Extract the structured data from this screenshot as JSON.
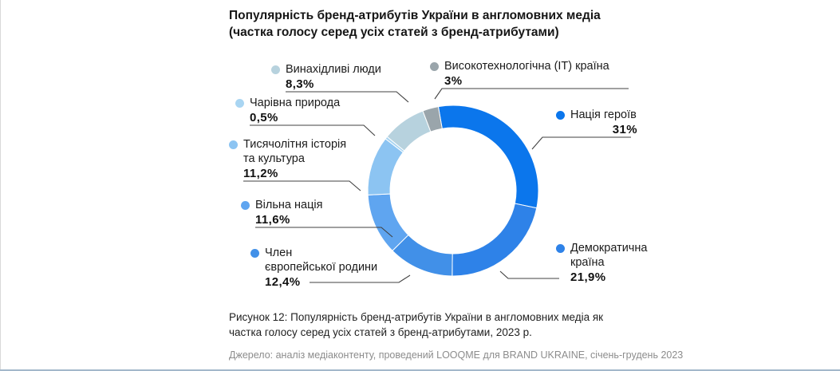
{
  "title": {
    "lines": [
      "Популярність бренд-атрибутів України в англомовних медіа",
      "(частка голосу серед усіх статей з бренд-атрибутами)"
    ]
  },
  "chart_data": {
    "type": "pie",
    "subtype": "donut",
    "title": "Популярність бренд-атрибутів України в англомовних медіа (частка голосу серед усіх статей з бренд-атрибутами)",
    "start_angle_deg": -10,
    "direction": "clockwise",
    "legend_position": "around",
    "slices": [
      {
        "label": "Нація героїв",
        "label_lines": [
          "Нація героїв"
        ],
        "value": 31,
        "display": "31%",
        "color": "#0b76ec"
      },
      {
        "label": "Демократична країна",
        "label_lines": [
          "Демократична",
          "країна"
        ],
        "value": 21.9,
        "display": "21,9%",
        "color": "#2e82e8"
      },
      {
        "label": "Член європейської родини",
        "label_lines": [
          "Член",
          "європейської родини"
        ],
        "value": 12.4,
        "display": "12,4%",
        "color": "#4190e8"
      },
      {
        "label": "Вільна нація",
        "label_lines": [
          "Вільна нація"
        ],
        "value": 11.6,
        "display": "11,6%",
        "color": "#5fa5f0"
      },
      {
        "label": "Тисячолітня історія та культура",
        "label_lines": [
          "Тисячолітня історія",
          "та культура"
        ],
        "value": 11.2,
        "display": "11,2%",
        "color": "#8cc4f2"
      },
      {
        "label": "Чарівна природа",
        "label_lines": [
          "Чарівна природа"
        ],
        "value": 0.5,
        "display": "0,5%",
        "color": "#a9d5f2"
      },
      {
        "label": "Винахідливі люди",
        "label_lines": [
          "Винахідливі люди"
        ],
        "value": 8.3,
        "display": "8,3%",
        "color": "#b7d2de"
      },
      {
        "label": "Високотехнологічна (ІТ) країна",
        "label_lines": [
          "Високотехнологічна (ІТ) країна"
        ],
        "value": 3,
        "display": "3%",
        "color": "#9aa5ab"
      }
    ]
  },
  "caption": "Рисунок 12: Популярність бренд-атрибутів України в англомовних медіа як частка голосу серед усіх статей з бренд-атрибутами, 2023 р.",
  "source": "Джерело: аналіз медіаконтенту, проведений LOOQME для BRAND UKRAINE, січень-грудень 2023"
}
